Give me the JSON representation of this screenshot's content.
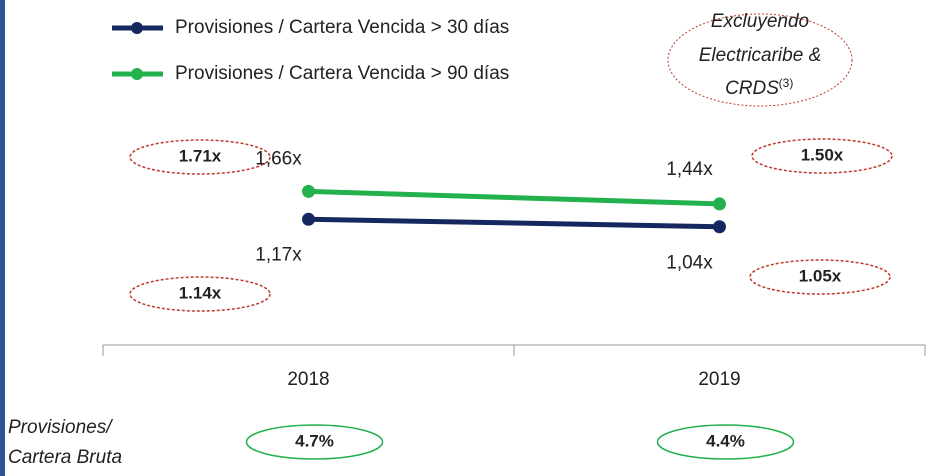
{
  "chart_data": {
    "type": "line",
    "categories": [
      "2018",
      "2019"
    ],
    "series": [
      {
        "name": "Provisiones / Cartera Vencida > 30 días",
        "color": "#14285f",
        "values": [
          1.17,
          1.04
        ],
        "value_labels": [
          "1,17x",
          "1,04x"
        ],
        "excluding_labels": [
          "1.14x",
          "1.05x"
        ]
      },
      {
        "name": "Provisiones / Cartera Vencida > 90 días",
        "color": "#22b14c",
        "values": [
          1.66,
          1.44
        ],
        "value_labels": [
          "1,66x",
          "1,44x"
        ],
        "excluding_labels": [
          "1.71x",
          "1.50x"
        ]
      }
    ],
    "ylim": [
      0,
      3
    ],
    "note": {
      "lines": [
        "Excluyendo",
        "Electricaribe &",
        "CRDS"
      ],
      "superscript": "(3)"
    },
    "secondary": {
      "label": [
        "Provisiones/",
        "Cartera Bruta"
      ],
      "value_labels": [
        "4.7%",
        "4.4%"
      ]
    }
  }
}
